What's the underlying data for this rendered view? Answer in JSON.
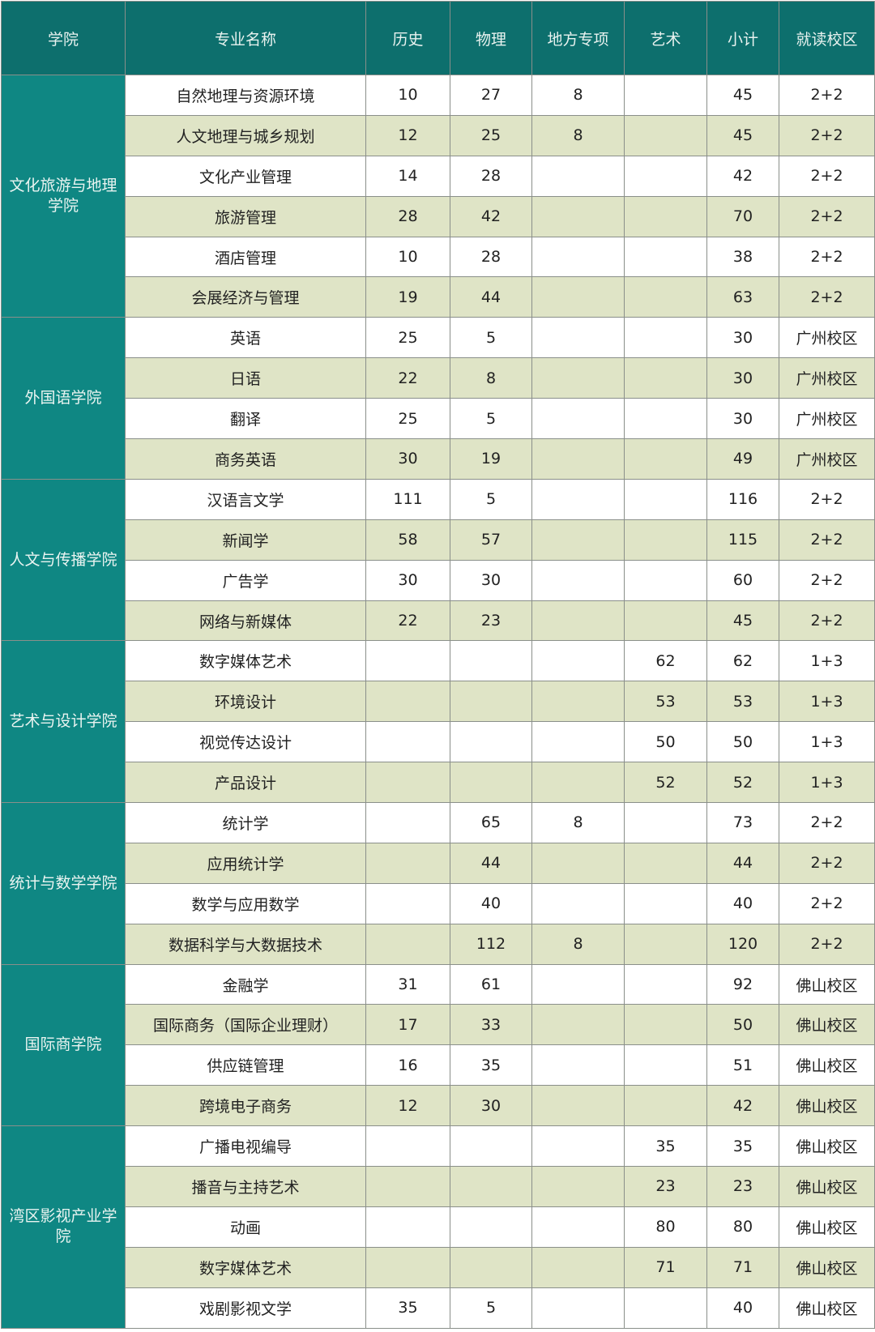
{
  "headers": [
    "学院",
    "专业名称",
    "历史",
    "物理",
    "地方专项",
    "艺术",
    "小计",
    "就读校区"
  ],
  "colleges": [
    {
      "name": "文化旅游与地理学院",
      "majors": [
        [
          "自然地理与资源环境",
          "10",
          "27",
          "8",
          "",
          "45",
          "2+2"
        ],
        [
          "人文地理与城乡规划",
          "12",
          "25",
          "8",
          "",
          "45",
          "2+2"
        ],
        [
          "文化产业管理",
          "14",
          "28",
          "",
          "",
          "42",
          "2+2"
        ],
        [
          "旅游管理",
          "28",
          "42",
          "",
          "",
          "70",
          "2+2"
        ],
        [
          "酒店管理",
          "10",
          "28",
          "",
          "",
          "38",
          "2+2"
        ],
        [
          "会展经济与管理",
          "19",
          "44",
          "",
          "",
          "63",
          "2+2"
        ]
      ]
    },
    {
      "name": "外国语学院",
      "majors": [
        [
          "英语",
          "25",
          "5",
          "",
          "",
          "30",
          "广州校区"
        ],
        [
          "日语",
          "22",
          "8",
          "",
          "",
          "30",
          "广州校区"
        ],
        [
          "翻译",
          "25",
          "5",
          "",
          "",
          "30",
          "广州校区"
        ],
        [
          "商务英语",
          "30",
          "19",
          "",
          "",
          "49",
          "广州校区"
        ]
      ]
    },
    {
      "name": "人文与传播学院",
      "majors": [
        [
          "汉语言文学",
          "111",
          "5",
          "",
          "",
          "116",
          "2+2"
        ],
        [
          "新闻学",
          "58",
          "57",
          "",
          "",
          "115",
          "2+2"
        ],
        [
          "广告学",
          "30",
          "30",
          "",
          "",
          "60",
          "2+2"
        ],
        [
          "网络与新媒体",
          "22",
          "23",
          "",
          "",
          "45",
          "2+2"
        ]
      ]
    },
    {
      "name": "艺术与设计学院",
      "majors": [
        [
          "数字媒体艺术",
          "",
          "",
          "",
          "62",
          "62",
          "1+3"
        ],
        [
          "环境设计",
          "",
          "",
          "",
          "53",
          "53",
          "1+3"
        ],
        [
          "视觉传达设计",
          "",
          "",
          "",
          "50",
          "50",
          "1+3"
        ],
        [
          "产品设计",
          "",
          "",
          "",
          "52",
          "52",
          "1+3"
        ]
      ]
    },
    {
      "name": "统计与数学学院",
      "majors": [
        [
          "统计学",
          "",
          "65",
          "8",
          "",
          "73",
          "2+2"
        ],
        [
          "应用统计学",
          "",
          "44",
          "",
          "",
          "44",
          "2+2"
        ],
        [
          "数学与应用数学",
          "",
          "40",
          "",
          "",
          "40",
          "2+2"
        ],
        [
          "数据科学与大数据技术",
          "",
          "112",
          "8",
          "",
          "120",
          "2+2"
        ]
      ]
    },
    {
      "name": "国际商学院",
      "majors": [
        [
          "金融学",
          "31",
          "61",
          "",
          "",
          "92",
          "佛山校区"
        ],
        [
          "国际商务（国际企业理财）",
          "17",
          "33",
          "",
          "",
          "50",
          "佛山校区"
        ],
        [
          "供应链管理",
          "16",
          "35",
          "",
          "",
          "51",
          "佛山校区"
        ],
        [
          "跨境电子商务",
          "12",
          "30",
          "",
          "",
          "42",
          "佛山校区"
        ]
      ]
    },
    {
      "name": "湾区影视产业学院",
      "majors": [
        [
          "广播电视编导",
          "",
          "",
          "",
          "35",
          "35",
          "佛山校区"
        ],
        [
          "播音与主持艺术",
          "",
          "",
          "",
          "23",
          "23",
          "佛山校区"
        ],
        [
          "动画",
          "",
          "",
          "",
          "80",
          "80",
          "佛山校区"
        ],
        [
          "数字媒体艺术",
          "",
          "",
          "",
          "71",
          "71",
          "佛山校区"
        ],
        [
          "戏剧影视文学",
          "35",
          "5",
          "",
          "",
          "40",
          "佛山校区"
        ]
      ]
    }
  ]
}
